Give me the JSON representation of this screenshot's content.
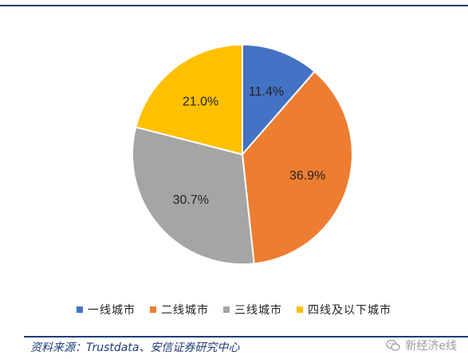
{
  "chart_data": {
    "type": "pie",
    "categories": [
      "一线城市",
      "二线城市",
      "三线城市",
      "四线及以下城市"
    ],
    "values": [
      11.4,
      36.9,
      30.7,
      21.0
    ],
    "labels": [
      "11.4%",
      "36.9%",
      "30.7%",
      "21.0%"
    ],
    "colors": [
      "#4472C4",
      "#ED7D31",
      "#A5A5A5",
      "#FFC000"
    ],
    "legend_position": "bottom",
    "start_angle_deg": 0,
    "direction": "clockwise"
  },
  "footer": {
    "source": "资料来源：Trustdata、安信证券研究中心",
    "watermark": "新经济e线"
  },
  "icons": {
    "watermark_icon": "wechat-icon"
  }
}
